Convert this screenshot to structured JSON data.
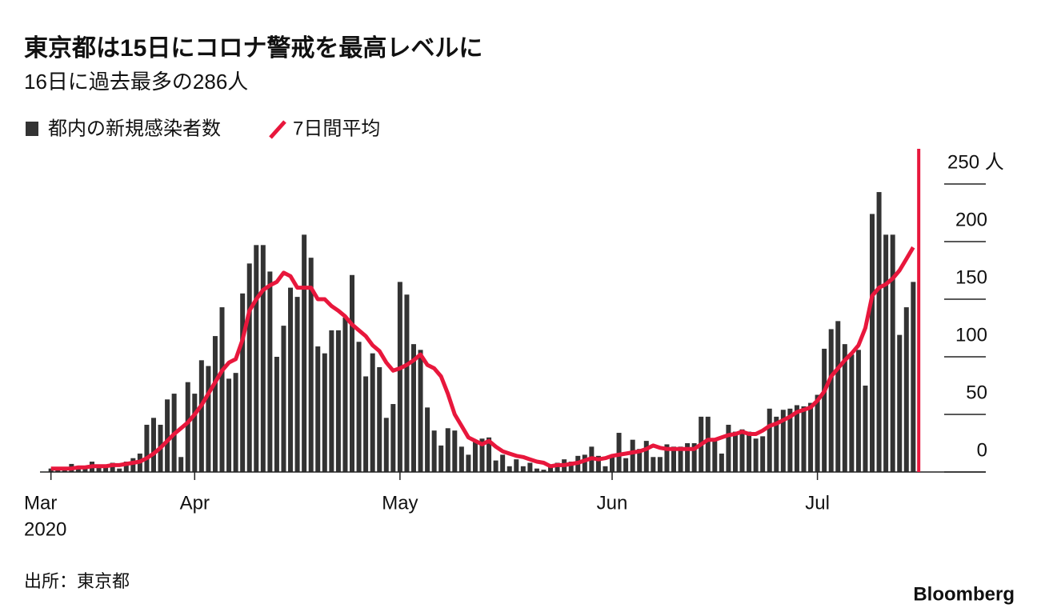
{
  "chart_data": {
    "type": "bar-line",
    "title": "東京都は15日にコロナ警戒を最高レベルに",
    "subtitle": "16日に過去最多の286人",
    "source": "出所：東京都",
    "brand": "Bloomberg",
    "year": "2020",
    "x": [
      0,
      1,
      2,
      3,
      4,
      5,
      6,
      7,
      8,
      9,
      10,
      11,
      12,
      13,
      14,
      15,
      16,
      17,
      18,
      19,
      20,
      21,
      22,
      23,
      24,
      25,
      26,
      27,
      28,
      29,
      30,
      31,
      32,
      33,
      34,
      35,
      36,
      37,
      38,
      39,
      40,
      41,
      42,
      43,
      44,
      45,
      46,
      47,
      48,
      49,
      50,
      51,
      52,
      53,
      54,
      55,
      56,
      57,
      58,
      59,
      60,
      61,
      62,
      63,
      64,
      65,
      66,
      67,
      68,
      69,
      70,
      71,
      72,
      73,
      74,
      75,
      76,
      77,
      78,
      79,
      80,
      81,
      82,
      83,
      84,
      85,
      86,
      87,
      88,
      89,
      90,
      91,
      92,
      93,
      94,
      95,
      96,
      97,
      98,
      99,
      100,
      101,
      102,
      103,
      104,
      105,
      106,
      107,
      108,
      109,
      110,
      111,
      112,
      113,
      114,
      115,
      116,
      117,
      118,
      119,
      120,
      121,
      122,
      123,
      124,
      125,
      126
    ],
    "series": [
      {
        "name": "都内の新規感染者数",
        "color": "#333333",
        "kind": "bar",
        "values": [
          3,
          2,
          2,
          7,
          4,
          3,
          9,
          5,
          6,
          8,
          3,
          9,
          12,
          16,
          41,
          47,
          41,
          63,
          68,
          13,
          78,
          68,
          97,
          92,
          118,
          143,
          81,
          86,
          155,
          181,
          197,
          197,
          174,
          100,
          127,
          160,
          152,
          206,
          186,
          109,
          103,
          123,
          123,
          134,
          171,
          113,
          83,
          103,
          91,
          47,
          59,
          165,
          154,
          111,
          106,
          56,
          36,
          23,
          38,
          36,
          22,
          15,
          26,
          29,
          30,
          10,
          15,
          5,
          11,
          5,
          8,
          3,
          2,
          5,
          8,
          11,
          9,
          14,
          15,
          22,
          14,
          5,
          13,
          34,
          12,
          28,
          20,
          27,
          13,
          13,
          24,
          22,
          22,
          25,
          25,
          48,
          48,
          27,
          16,
          41,
          35,
          37,
          35,
          29,
          31,
          55,
          48,
          54,
          55,
          58,
          57,
          60,
          67,
          107,
          124,
          131,
          111,
          102,
          106,
          75,
          224,
          243,
          206,
          206,
          119,
          143,
          165
        ]
      },
      {
        "name": "7日間平均",
        "color": "#e8173c",
        "kind": "line",
        "values": [
          3,
          3,
          3,
          3,
          4,
          4,
          5,
          5,
          5,
          6,
          6,
          7,
          8,
          9,
          12,
          16,
          21,
          27,
          33,
          38,
          43,
          50,
          58,
          68,
          78,
          88,
          95,
          98,
          115,
          140,
          150,
          158,
          162,
          165,
          173,
          170,
          160,
          160,
          160,
          150,
          150,
          144,
          140,
          135,
          128,
          123,
          118,
          110,
          105,
          95,
          88,
          90,
          93,
          97,
          102,
          93,
          90,
          83,
          68,
          50,
          40,
          30,
          27,
          24,
          27,
          22,
          18,
          16,
          14,
          13,
          11,
          9,
          8,
          5,
          6,
          6,
          7,
          8,
          10,
          12,
          11,
          12,
          14,
          15,
          16,
          17,
          18,
          20,
          23,
          21,
          20,
          20,
          20,
          20,
          20,
          24,
          28,
          28,
          30,
          32,
          33,
          35,
          33,
          33,
          36,
          40,
          42,
          45,
          48,
          52,
          54,
          56,
          62,
          70,
          83,
          90,
          97,
          103,
          110,
          125,
          153,
          160,
          163,
          168,
          175,
          185,
          195
        ]
      }
    ],
    "xlim": [
      -1.6,
      136.6
    ],
    "xticks": [
      {
        "value": 0,
        "label": "Mar"
      },
      {
        "value": 21,
        "label": "Apr"
      },
      {
        "value": 51,
        "label": "May"
      },
      {
        "value": 82,
        "label": "Jun"
      },
      {
        "value": 112,
        "label": "Jul"
      }
    ],
    "ylim": [
      0,
      250
    ],
    "yticks": [
      0,
      50,
      100,
      150,
      200,
      {
        "value": 250,
        "label": "250 人"
      }
    ],
    "marker_x": 126.8,
    "marker_color": "#e8173c"
  }
}
